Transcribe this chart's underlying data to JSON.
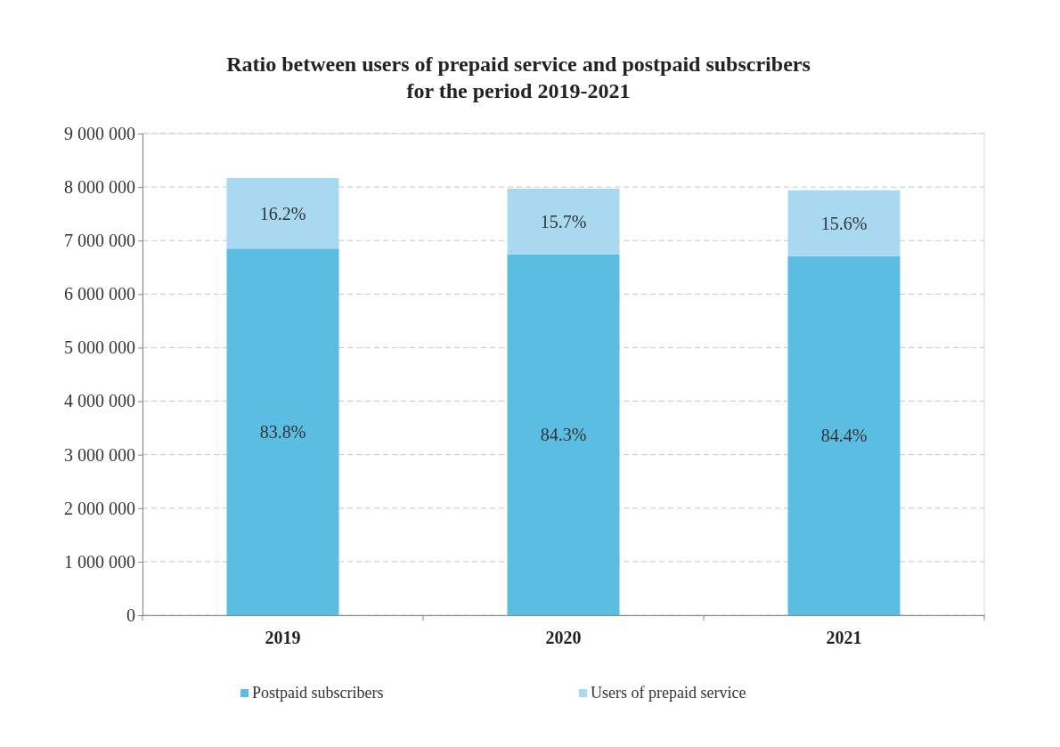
{
  "chart_data": {
    "type": "bar",
    "title": "Ratio between users of prepaid service and postpaid subscribers\nfor the period 2019-2021",
    "categories": [
      "2019",
      "2020",
      "2021"
    ],
    "stacked": true,
    "series": [
      {
        "name": "Postpaid subscribers",
        "color": "#5bbde2",
        "values": [
          6850000,
          6740000,
          6710000
        ]
      },
      {
        "name": "Users of prepaid service",
        "color": "#a8d9f0",
        "values": [
          1320000,
          1230000,
          1230000
        ]
      }
    ],
    "annotations": [
      "83.8%",
      "84.3%",
      "84.4%",
      "16.2%",
      "15.7%",
      "15.6%"
    ],
    "ylim": [
      0,
      9000000
    ],
    "yticks": [
      0,
      {
        "value": 1000000,
        "label": "1 000 000"
      },
      {
        "value": 2000000,
        "label": "2 000 000"
      },
      {
        "value": 3000000,
        "label": "3 000 000"
      },
      {
        "value": 4000000,
        "label": "4 000 000"
      },
      {
        "value": 5000000,
        "label": "5 000 000"
      },
      {
        "value": 6000000,
        "label": "6 000 000"
      },
      {
        "value": 7000000,
        "label": "7 000 000"
      },
      {
        "value": 8000000,
        "label": "8 000 000"
      },
      {
        "value": 9000000,
        "label": "9 000 000"
      }
    ],
    "grid": "y",
    "legend": "bottom"
  }
}
